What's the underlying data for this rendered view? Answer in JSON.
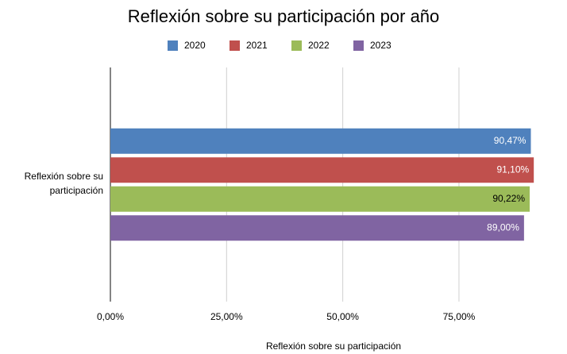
{
  "chart_data": {
    "type": "bar",
    "orientation": "horizontal",
    "title": "Reflexión sobre su participación  por año",
    "xlabel": "Reflexión sobre su participación",
    "categories": [
      "Reflexión sobre su participación"
    ],
    "series": [
      {
        "name": "2020",
        "color": "#4f81bd",
        "label_color": "#ffffff",
        "values": [
          90.47
        ],
        "value_labels": [
          "90,47%"
        ]
      },
      {
        "name": "2021",
        "color": "#c0504d",
        "label_color": "#ffffff",
        "values": [
          91.1
        ],
        "value_labels": [
          "91,10%"
        ]
      },
      {
        "name": "2022",
        "color": "#9bbb59",
        "label_color": "#000000",
        "values": [
          90.22
        ],
        "value_labels": [
          "90,22%"
        ]
      },
      {
        "name": "2023",
        "color": "#8064a2",
        "label_color": "#ffffff",
        "values": [
          89.0
        ],
        "value_labels": [
          "89,00%"
        ]
      }
    ],
    "xlim": [
      0,
      95
    ],
    "xticks": [
      {
        "value": 0,
        "label": "0,00%"
      },
      {
        "value": 25,
        "label": "25,00%"
      },
      {
        "value": 50,
        "label": "50,00%"
      },
      {
        "value": 75,
        "label": "75,00%"
      }
    ],
    "grid": true,
    "legend": "top"
  }
}
